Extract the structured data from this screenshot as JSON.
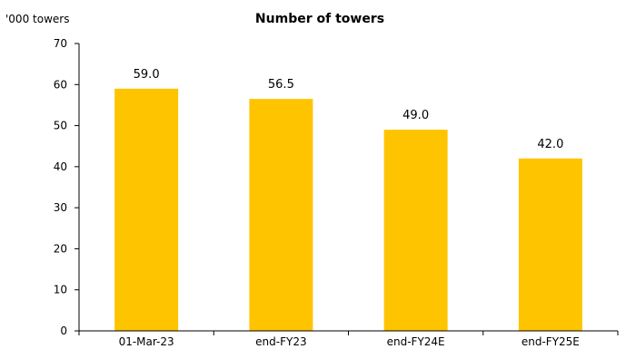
{
  "chart_data": {
    "type": "bar",
    "title": "Number of towers",
    "unit_label": "'000 towers",
    "xlabel": "",
    "ylabel": "",
    "categories": [
      "01-Mar-23",
      "end-FY23",
      "end-FY24E",
      "end-FY25E"
    ],
    "values": [
      59.0,
      56.5,
      49.0,
      42.0
    ],
    "value_labels": [
      "59.0",
      "56.5",
      "49.0",
      "42.0"
    ],
    "ylim": [
      0,
      70
    ],
    "yticks": [
      0,
      10,
      20,
      30,
      40,
      50,
      60,
      70
    ],
    "grid": false,
    "legend": "none",
    "colors": {
      "bar": "#FFC400",
      "axis": "#000000"
    }
  }
}
